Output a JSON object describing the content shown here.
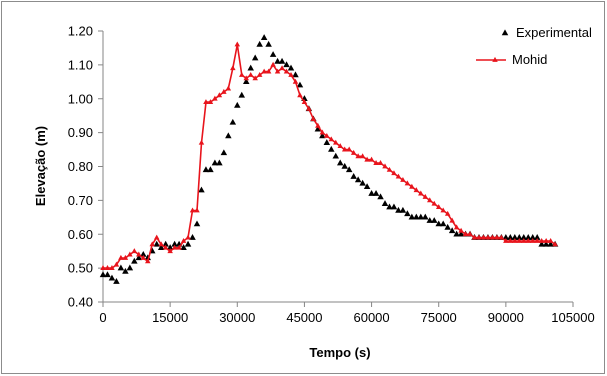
{
  "chart_data": {
    "type": "scatter",
    "xlabel": "Tempo (s)",
    "ylabel": "Elevação  (m)",
    "xlim": [
      0,
      105000
    ],
    "ylim": [
      0.4,
      1.2
    ],
    "x_ticks": [
      "0",
      "15000",
      "30000",
      "45000",
      "60000",
      "75000",
      "90000",
      "105000"
    ],
    "y_ticks": [
      "0.40",
      "0.50",
      "0.60",
      "0.70",
      "0.80",
      "0.90",
      "1.00",
      "1.10",
      "1.20"
    ],
    "grid": false,
    "legend_position": "top-right",
    "series": [
      {
        "name": "Experimental",
        "style": "markers",
        "marker": "triangle",
        "color": "#000000",
        "points": [
          [
            0,
            0.48
          ],
          [
            1000,
            0.48
          ],
          [
            2000,
            0.47
          ],
          [
            3000,
            0.46
          ],
          [
            4000,
            0.5
          ],
          [
            5000,
            0.49
          ],
          [
            6000,
            0.5
          ],
          [
            7000,
            0.52
          ],
          [
            8000,
            0.53
          ],
          [
            9000,
            0.54
          ],
          [
            10000,
            0.53
          ],
          [
            11000,
            0.55
          ],
          [
            12000,
            0.57
          ],
          [
            13000,
            0.56
          ],
          [
            14000,
            0.57
          ],
          [
            15000,
            0.56
          ],
          [
            16000,
            0.57
          ],
          [
            17000,
            0.57
          ],
          [
            18000,
            0.56
          ],
          [
            19000,
            0.57
          ],
          [
            20000,
            0.59
          ],
          [
            21000,
            0.63
          ],
          [
            22000,
            0.73
          ],
          [
            23000,
            0.79
          ],
          [
            24000,
            0.79
          ],
          [
            25000,
            0.81
          ],
          [
            26000,
            0.81
          ],
          [
            27000,
            0.84
          ],
          [
            28000,
            0.89
          ],
          [
            29000,
            0.93
          ],
          [
            30000,
            0.98
          ],
          [
            31000,
            1.01
          ],
          [
            32000,
            1.05
          ],
          [
            33000,
            1.09
          ],
          [
            34000,
            1.12
          ],
          [
            35000,
            1.16
          ],
          [
            36000,
            1.18
          ],
          [
            37000,
            1.16
          ],
          [
            38000,
            1.13
          ],
          [
            39000,
            1.11
          ],
          [
            40000,
            1.11
          ],
          [
            41000,
            1.1
          ],
          [
            42000,
            1.09
          ],
          [
            43000,
            1.07
          ],
          [
            44000,
            1.04
          ],
          [
            45000,
            1.0
          ],
          [
            46000,
            0.97
          ],
          [
            47000,
            0.94
          ],
          [
            48000,
            0.91
          ],
          [
            49000,
            0.89
          ],
          [
            50000,
            0.87
          ],
          [
            51000,
            0.85
          ],
          [
            52000,
            0.83
          ],
          [
            53000,
            0.81
          ],
          [
            54000,
            0.8
          ],
          [
            55000,
            0.79
          ],
          [
            56000,
            0.77
          ],
          [
            57000,
            0.76
          ],
          [
            58000,
            0.75
          ],
          [
            59000,
            0.74
          ],
          [
            60000,
            0.72
          ],
          [
            61000,
            0.72
          ],
          [
            62000,
            0.71
          ],
          [
            63000,
            0.69
          ],
          [
            64000,
            0.68
          ],
          [
            65000,
            0.68
          ],
          [
            66000,
            0.67
          ],
          [
            67000,
            0.67
          ],
          [
            68000,
            0.66
          ],
          [
            69000,
            0.65
          ],
          [
            70000,
            0.65
          ],
          [
            71000,
            0.65
          ],
          [
            72000,
            0.65
          ],
          [
            73000,
            0.64
          ],
          [
            74000,
            0.64
          ],
          [
            75000,
            0.63
          ],
          [
            76000,
            0.63
          ],
          [
            77000,
            0.62
          ],
          [
            78000,
            0.61
          ],
          [
            79000,
            0.6
          ],
          [
            80000,
            0.6
          ],
          [
            81000,
            0.6
          ],
          [
            82000,
            0.6
          ],
          [
            83000,
            0.59
          ],
          [
            84000,
            0.59
          ],
          [
            85000,
            0.59
          ],
          [
            86000,
            0.59
          ],
          [
            87000,
            0.59
          ],
          [
            88000,
            0.59
          ],
          [
            89000,
            0.59
          ],
          [
            90000,
            0.59
          ],
          [
            91000,
            0.59
          ],
          [
            92000,
            0.59
          ],
          [
            93000,
            0.59
          ],
          [
            94000,
            0.59
          ],
          [
            95000,
            0.59
          ],
          [
            96000,
            0.59
          ],
          [
            97000,
            0.59
          ],
          [
            98000,
            0.57
          ],
          [
            99000,
            0.57
          ],
          [
            100000,
            0.57
          ],
          [
            101000,
            0.57
          ]
        ]
      },
      {
        "name": "Mohid",
        "style": "line-markers",
        "marker": "triangle",
        "color": "#e8141c",
        "points": [
          [
            0,
            0.5
          ],
          [
            1000,
            0.5
          ],
          [
            2000,
            0.5
          ],
          [
            3000,
            0.51
          ],
          [
            4000,
            0.53
          ],
          [
            5000,
            0.53
          ],
          [
            6000,
            0.54
          ],
          [
            7000,
            0.55
          ],
          [
            8000,
            0.54
          ],
          [
            9000,
            0.53
          ],
          [
            10000,
            0.52
          ],
          [
            11000,
            0.57
          ],
          [
            12000,
            0.59
          ],
          [
            13000,
            0.57
          ],
          [
            14000,
            0.56
          ],
          [
            15000,
            0.55
          ],
          [
            16000,
            0.56
          ],
          [
            17000,
            0.56
          ],
          [
            18000,
            0.58
          ],
          [
            19000,
            0.59
          ],
          [
            20000,
            0.67
          ],
          [
            21000,
            0.67
          ],
          [
            22000,
            0.87
          ],
          [
            23000,
            0.99
          ],
          [
            24000,
            0.99
          ],
          [
            25000,
            1.0
          ],
          [
            26000,
            1.01
          ],
          [
            27000,
            1.02
          ],
          [
            28000,
            1.03
          ],
          [
            29000,
            1.09
          ],
          [
            30000,
            1.16
          ],
          [
            31000,
            1.07
          ],
          [
            32000,
            1.06
          ],
          [
            33000,
            1.07
          ],
          [
            34000,
            1.06
          ],
          [
            35000,
            1.07
          ],
          [
            36000,
            1.08
          ],
          [
            37000,
            1.08
          ],
          [
            38000,
            1.1
          ],
          [
            39000,
            1.08
          ],
          [
            40000,
            1.09
          ],
          [
            41000,
            1.08
          ],
          [
            42000,
            1.07
          ],
          [
            43000,
            1.05
          ],
          [
            44000,
            1.01
          ],
          [
            45000,
            0.99
          ],
          [
            46000,
            0.97
          ],
          [
            47000,
            0.94
          ],
          [
            48000,
            0.92
          ],
          [
            49000,
            0.9
          ],
          [
            50000,
            0.89
          ],
          [
            51000,
            0.88
          ],
          [
            52000,
            0.87
          ],
          [
            53000,
            0.86
          ],
          [
            54000,
            0.85
          ],
          [
            55000,
            0.85
          ],
          [
            56000,
            0.84
          ],
          [
            57000,
            0.83
          ],
          [
            58000,
            0.83
          ],
          [
            59000,
            0.82
          ],
          [
            60000,
            0.82
          ],
          [
            61000,
            0.81
          ],
          [
            62000,
            0.81
          ],
          [
            63000,
            0.8
          ],
          [
            64000,
            0.79
          ],
          [
            65000,
            0.78
          ],
          [
            66000,
            0.77
          ],
          [
            67000,
            0.76
          ],
          [
            68000,
            0.75
          ],
          [
            69000,
            0.74
          ],
          [
            70000,
            0.73
          ],
          [
            71000,
            0.72
          ],
          [
            72000,
            0.71
          ],
          [
            73000,
            0.7
          ],
          [
            74000,
            0.69
          ],
          [
            75000,
            0.68
          ],
          [
            76000,
            0.67
          ],
          [
            77000,
            0.66
          ],
          [
            78000,
            0.64
          ],
          [
            79000,
            0.62
          ],
          [
            80000,
            0.61
          ],
          [
            81000,
            0.6
          ],
          [
            82000,
            0.6
          ],
          [
            83000,
            0.59
          ],
          [
            84000,
            0.59
          ],
          [
            85000,
            0.59
          ],
          [
            86000,
            0.59
          ],
          [
            87000,
            0.59
          ],
          [
            88000,
            0.59
          ],
          [
            89000,
            0.59
          ],
          [
            90000,
            0.58
          ],
          [
            91000,
            0.58
          ],
          [
            92000,
            0.58
          ],
          [
            93000,
            0.58
          ],
          [
            94000,
            0.58
          ],
          [
            95000,
            0.58
          ],
          [
            96000,
            0.58
          ],
          [
            97000,
            0.58
          ],
          [
            98000,
            0.58
          ],
          [
            99000,
            0.58
          ],
          [
            100000,
            0.58
          ],
          [
            101000,
            0.57
          ]
        ]
      }
    ]
  }
}
